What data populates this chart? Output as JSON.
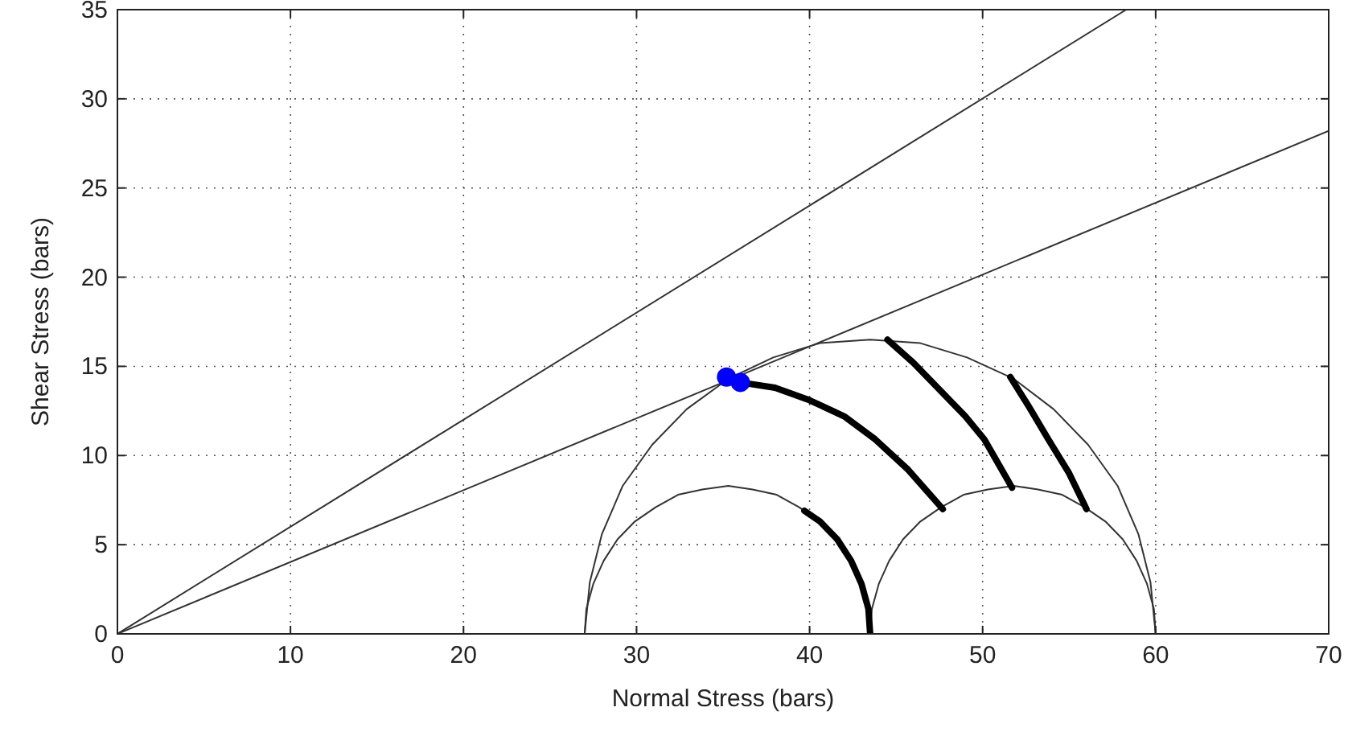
{
  "chart_data": {
    "type": "line",
    "xlabel": "Normal Stress (bars)",
    "ylabel": "Shear Stress (bars)",
    "xlim": [
      0,
      70
    ],
    "ylim": [
      0,
      35
    ],
    "xticks": [
      0,
      10,
      20,
      30,
      40,
      50,
      60,
      70
    ],
    "yticks": [
      0,
      5,
      10,
      15,
      20,
      25,
      30,
      35
    ],
    "grid": true,
    "marker": "none",
    "line_style": "solid",
    "series": [
      {
        "color": "#333333",
        "x": [
          0,
          58.3
        ],
        "values": [
          0,
          35
        ]
      },
      {
        "color": "#333333",
        "x": [
          0,
          70
        ],
        "values": [
          0,
          28.2
        ]
      },
      {
        "color": "#333333",
        "x": [
          60,
          59.7,
          59.0,
          57.8,
          56.1,
          54.1,
          51.8,
          49.1,
          46.4,
          43.5,
          40.6,
          37.9,
          35.3,
          32.9,
          30.9,
          29.2,
          28.0,
          27.3,
          27
        ],
        "values": [
          0,
          2.9,
          5.6,
          8.3,
          10.6,
          12.6,
          14.3,
          15.5,
          16.3,
          16.5,
          16.3,
          15.5,
          14.3,
          12.6,
          10.6,
          8.3,
          5.6,
          2.9,
          0
        ]
      },
      {
        "color": "#333333",
        "x": [
          43.5,
          43.4,
          43.0,
          42.4,
          41.6,
          40.6,
          39.4,
          38.1,
          36.7,
          35.3,
          33.8,
          32.4,
          31.1,
          29.9,
          28.9,
          28.1,
          27.5,
          27.1,
          27
        ],
        "values": [
          0,
          1.4,
          2.8,
          4.1,
          5.3,
          6.3,
          7.1,
          7.8,
          8.1,
          8.3,
          8.1,
          7.8,
          7.1,
          6.3,
          5.3,
          4.1,
          2.8,
          1.4,
          0
        ]
      },
      {
        "color": "#333333",
        "x": [
          60,
          59.9,
          59.5,
          58.9,
          58.1,
          57.1,
          55.9,
          54.6,
          53.2,
          51.8,
          50.3,
          48.9,
          47.6,
          46.4,
          45.4,
          44.6,
          44.0,
          43.6,
          43.5
        ],
        "values": [
          0,
          1.4,
          2.8,
          4.1,
          5.3,
          6.3,
          7.1,
          7.8,
          8.1,
          8.3,
          8.1,
          7.8,
          7.1,
          6.3,
          5.3,
          4.1,
          2.8,
          1.4,
          0
        ]
      },
      {
        "color": "#000000",
        "x": [
          39.7,
          40.6,
          41.6,
          42.4,
          43.0,
          43.4,
          43.5
        ],
        "values": [
          6.9,
          6.3,
          5.3,
          4.1,
          2.8,
          1.4,
          0
        ]
      },
      {
        "color": "#000000",
        "x": [
          36,
          38,
          40,
          42,
          43.8,
          45.7,
          47.7
        ],
        "values": [
          14.1,
          13.8,
          13.1,
          12.2,
          10.9,
          9.2,
          7.0
        ]
      },
      {
        "color": "#000000",
        "x": [
          44.5,
          46,
          47.5,
          49,
          50.1,
          51.7
        ],
        "values": [
          16.5,
          15.2,
          13.7,
          12.2,
          10.9,
          8.2
        ]
      },
      {
        "color": "#000000",
        "x": [
          51.6,
          52.7,
          53.8,
          55,
          56.0
        ],
        "values": [
          14.4,
          12.7,
          10.9,
          9,
          7.0
        ]
      },
      {
        "type": "scatter",
        "marker": "circle",
        "color": "#0000ff",
        "x": [
          35.2,
          36.0
        ],
        "values": [
          14.4,
          14.1
        ]
      }
    ]
  }
}
